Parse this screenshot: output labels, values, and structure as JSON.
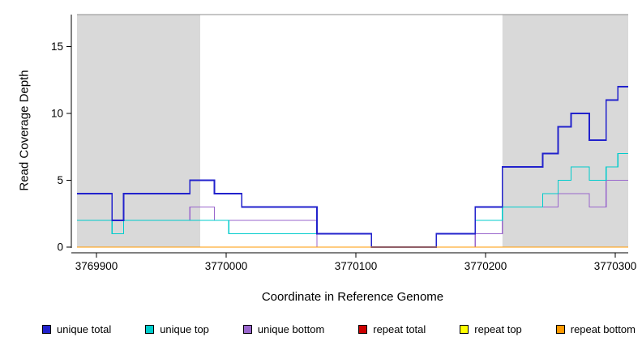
{
  "chart_data": {
    "type": "line",
    "subtype": "step-coverage-plot",
    "title": "",
    "xlabel": "Coordinate in Reference Genome",
    "ylabel": "Read Coverage Depth",
    "xlim": [
      3769885,
      3770310
    ],
    "ylim": [
      0,
      17.4
    ],
    "x_ticks": [
      "3769900",
      "3770000",
      "3770100",
      "3770200",
      "3770300"
    ],
    "x_tick_values": [
      3769900,
      3770000,
      3770100,
      3770200,
      3770300
    ],
    "y_ticks": [
      "0",
      "5",
      "10",
      "15"
    ],
    "y_tick_values": [
      0,
      5,
      10,
      15
    ],
    "grid": false,
    "legend_position": "bottom",
    "shade_color": "#d9d9d9",
    "shaded_regions": [
      {
        "start": 3769885,
        "end": 3769980
      },
      {
        "start": 3770213,
        "end": 3770310
      }
    ],
    "series": [
      {
        "name": "unique total",
        "color": "#2222cc",
        "steps": [
          [
            3769885,
            4
          ],
          [
            3769912,
            2
          ],
          [
            3769921,
            4
          ],
          [
            3769972,
            5
          ],
          [
            3769991,
            4
          ],
          [
            3770012,
            3
          ],
          [
            3770070,
            1
          ],
          [
            3770112,
            0
          ],
          [
            3770162,
            1
          ],
          [
            3770192,
            3
          ],
          [
            3770213,
            6
          ],
          [
            3770244,
            7
          ],
          [
            3770256,
            9
          ],
          [
            3770266,
            10
          ],
          [
            3770280,
            8
          ],
          [
            3770293,
            11
          ],
          [
            3770302,
            12
          ]
        ]
      },
      {
        "name": "unique top",
        "color": "#00cccc",
        "steps": [
          [
            3769885,
            2
          ],
          [
            3769912,
            1
          ],
          [
            3769921,
            2
          ],
          [
            3770002,
            1
          ],
          [
            3770112,
            0
          ],
          [
            3770162,
            1
          ],
          [
            3770192,
            2
          ],
          [
            3770213,
            3
          ],
          [
            3770244,
            4
          ],
          [
            3770256,
            5
          ],
          [
            3770266,
            6
          ],
          [
            3770280,
            5
          ],
          [
            3770293,
            6
          ],
          [
            3770302,
            7
          ]
        ]
      },
      {
        "name": "unique bottom",
        "color": "#9966cc",
        "steps": [
          [
            3769885,
            2
          ],
          [
            3769912,
            1
          ],
          [
            3769921,
            2
          ],
          [
            3769972,
            3
          ],
          [
            3769991,
            2
          ],
          [
            3770070,
            0
          ],
          [
            3770192,
            1
          ],
          [
            3770213,
            3
          ],
          [
            3770256,
            4
          ],
          [
            3770280,
            3
          ],
          [
            3770293,
            5
          ]
        ]
      },
      {
        "name": "repeat total",
        "color": "#cc0000",
        "steps": [
          [
            3769885,
            0
          ]
        ]
      },
      {
        "name": "repeat top",
        "color": "#ffff00",
        "steps": [
          [
            3769885,
            0
          ]
        ]
      },
      {
        "name": "repeat bottom",
        "color": "#ff9900",
        "steps": [
          [
            3769885,
            0
          ]
        ]
      }
    ],
    "legend": [
      {
        "label": "unique total",
        "color": "#2222cc"
      },
      {
        "label": "unique top",
        "color": "#00cccc"
      },
      {
        "label": "unique bottom",
        "color": "#9966cc"
      },
      {
        "label": "repeat total",
        "color": "#cc0000"
      },
      {
        "label": "repeat top",
        "color": "#ffff00"
      },
      {
        "label": "repeat bottom",
        "color": "#ff9900"
      }
    ]
  }
}
